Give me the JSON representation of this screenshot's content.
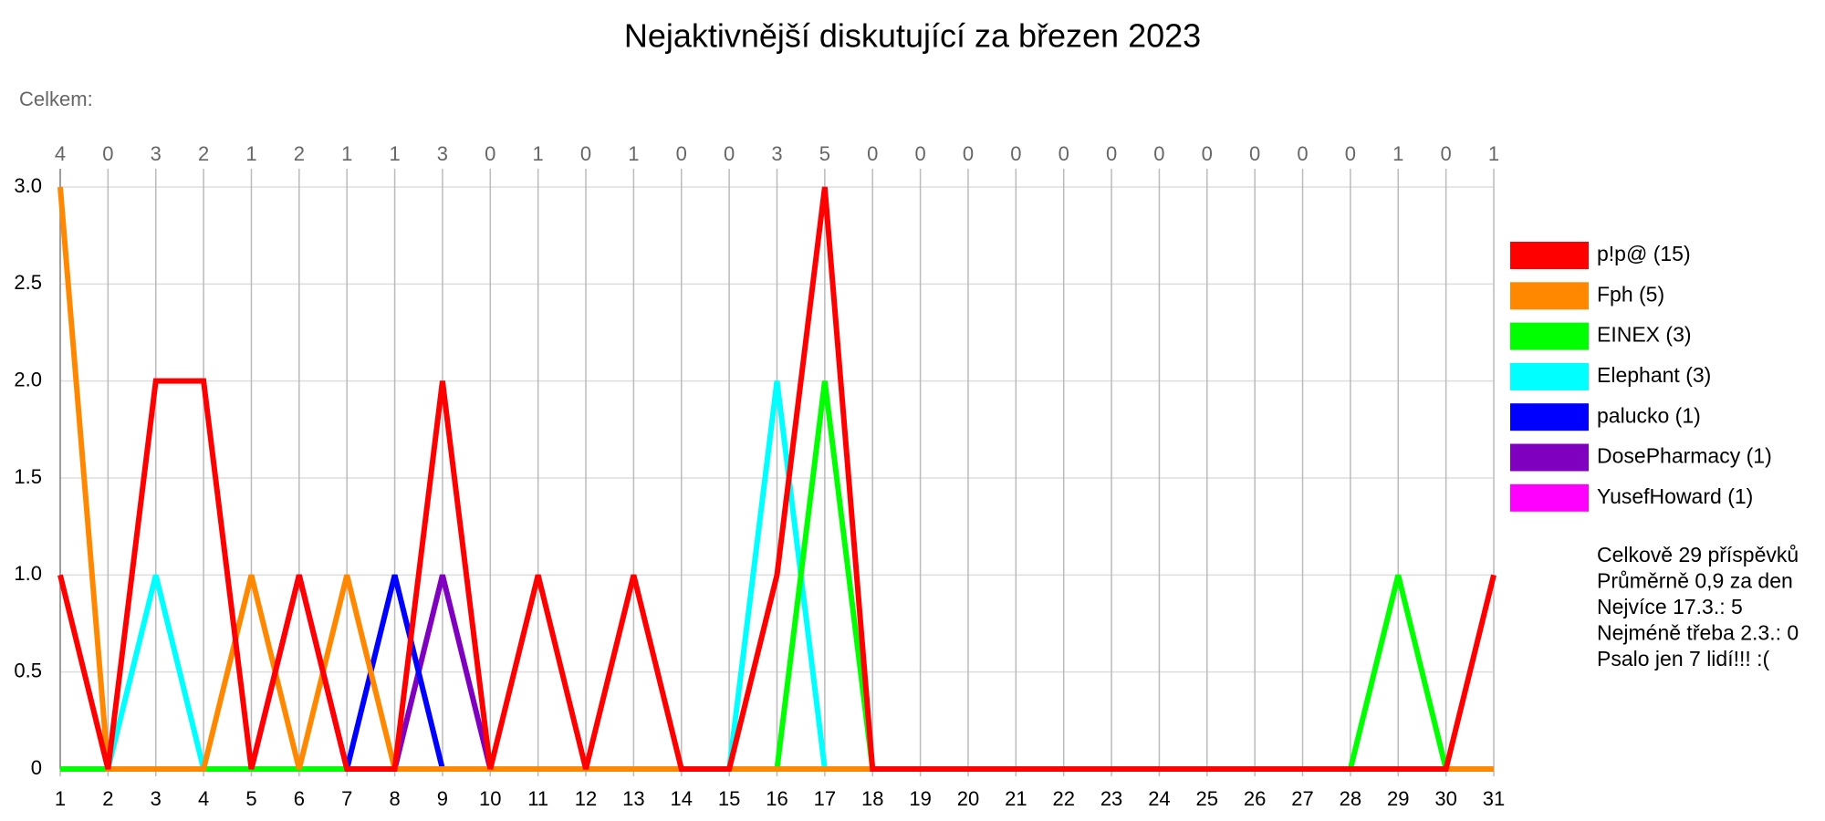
{
  "chart_data": {
    "type": "line",
    "title": "Nejaktivnější diskutující za březen 2023",
    "subtitle": "Celkem:",
    "x": [
      1,
      2,
      3,
      4,
      5,
      6,
      7,
      8,
      9,
      10,
      11,
      12,
      13,
      14,
      15,
      16,
      17,
      18,
      19,
      20,
      21,
      22,
      23,
      24,
      25,
      26,
      27,
      28,
      29,
      30,
      31
    ],
    "totals": [
      4,
      0,
      3,
      2,
      1,
      2,
      1,
      1,
      3,
      0,
      1,
      0,
      1,
      0,
      0,
      3,
      5,
      0,
      0,
      0,
      0,
      0,
      0,
      0,
      0,
      0,
      0,
      0,
      1,
      0,
      1
    ],
    "xlim": [
      1,
      31
    ],
    "ylim": [
      0,
      3
    ],
    "yticks": [
      0,
      0.5,
      {
        "value": 1,
        "label": "1.0"
      },
      1.5,
      {
        "value": 2,
        "label": "2.0"
      },
      2.5,
      {
        "value": 3,
        "label": "3.0"
      }
    ],
    "grid": true,
    "legend": "right",
    "series": [
      {
        "name": "p!p@ (15)",
        "color": "#ff0000",
        "values": [
          1,
          0,
          2,
          2,
          0,
          1,
          0,
          0,
          2,
          0,
          1,
          0,
          1,
          0,
          0,
          1,
          3,
          0,
          0,
          0,
          0,
          0,
          0,
          0,
          0,
          0,
          0,
          0,
          0,
          0,
          1
        ]
      },
      {
        "name": "Fph (5)",
        "color": "#ff8800",
        "values": [
          3,
          0,
          0,
          0,
          1,
          0,
          1,
          0,
          0,
          0,
          0,
          0,
          0,
          0,
          0,
          0,
          0,
          0,
          0,
          0,
          0,
          0,
          0,
          0,
          0,
          0,
          0,
          0,
          0,
          0,
          0
        ]
      },
      {
        "name": "EINEX (3)",
        "color": "#00ff00",
        "values": [
          0,
          0,
          0,
          0,
          0,
          0,
          0,
          0,
          0,
          0,
          0,
          0,
          0,
          0,
          0,
          0,
          2,
          0,
          0,
          0,
          0,
          0,
          0,
          0,
          0,
          0,
          0,
          0,
          1,
          0,
          0
        ]
      },
      {
        "name": "Elephant (3)",
        "color": "#00ffff",
        "values": [
          null,
          0,
          1,
          0,
          0,
          0,
          0,
          0,
          0,
          0,
          0,
          0,
          0,
          0,
          0,
          2,
          0,
          null,
          null,
          null,
          null,
          null,
          null,
          null,
          null,
          null,
          null,
          null,
          null,
          null,
          null
        ]
      },
      {
        "name": "palucko (1)",
        "color": "#0000ff",
        "values": [
          null,
          null,
          null,
          null,
          null,
          null,
          0,
          1,
          0,
          null,
          null,
          null,
          null,
          null,
          null,
          null,
          null,
          null,
          null,
          null,
          null,
          null,
          null,
          null,
          null,
          null,
          null,
          null,
          null,
          null,
          null
        ]
      },
      {
        "name": "DosePharmacy (1)",
        "color": "#7f00bf",
        "values": [
          null,
          null,
          null,
          null,
          null,
          null,
          null,
          0,
          1,
          0,
          null,
          null,
          null,
          null,
          null,
          null,
          null,
          null,
          null,
          null,
          null,
          null,
          null,
          null,
          null,
          null,
          null,
          null,
          null,
          null,
          null
        ]
      },
      {
        "name": "YusefHoward (1)",
        "color": "#ff00ff",
        "values": [
          null,
          null,
          null,
          null,
          0,
          1,
          0,
          null,
          null,
          null,
          null,
          null,
          null,
          null,
          null,
          null,
          null,
          null,
          null,
          null,
          null,
          null,
          null,
          null,
          null,
          null,
          null,
          null,
          null,
          null,
          null
        ]
      }
    ],
    "annotations": [
      "Celkově 29 příspěvků",
      "Průměrně 0,9 za den",
      "Nejvíce 17.3.: 5",
      "Nejméně třeba 2.3.: 0",
      "Psalo jen 7 lidí!!! :("
    ]
  }
}
